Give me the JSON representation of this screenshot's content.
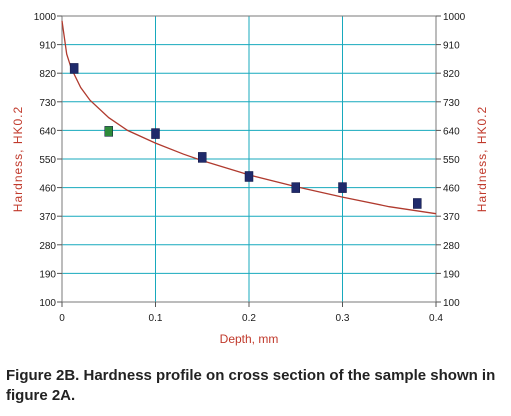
{
  "caption": "Figure 2B. Hardness profile on cross section of the sample shown in figure 2A.",
  "chart_data": {
    "type": "scatter",
    "xlabel": "Depth, mm",
    "ylabel_left": "Hardness, HK0.2",
    "ylabel_right": "Hardness, HK0.2",
    "xlim": [
      0,
      0.4
    ],
    "ylim": [
      100,
      1000
    ],
    "x_ticks": [
      "0",
      "0.1",
      "0.2",
      "0.3",
      "0.4"
    ],
    "x_tick_values": [
      0,
      0.1,
      0.2,
      0.3,
      0.4
    ],
    "y_ticks": [
      "100",
      "190",
      "280",
      "370",
      "460",
      "550",
      "640",
      "730",
      "820",
      "910",
      "1000"
    ],
    "y_tick_values": [
      100,
      190,
      280,
      370,
      460,
      550,
      640,
      730,
      820,
      910,
      1000
    ],
    "grid": true,
    "series": [
      {
        "color": "#1f2a6b",
        "marker": "square",
        "points": [
          {
            "x": 0.013,
            "y": 835
          },
          {
            "x": 0.1,
            "y": 630
          },
          {
            "x": 0.15,
            "y": 555
          },
          {
            "x": 0.2,
            "y": 495
          },
          {
            "x": 0.25,
            "y": 460
          },
          {
            "x": 0.3,
            "y": 460
          },
          {
            "x": 0.38,
            "y": 410
          }
        ]
      },
      {
        "color": "#2e8b3a",
        "marker": "square",
        "points": [
          {
            "x": 0.05,
            "y": 637
          }
        ]
      }
    ],
    "trend_line": {
      "color": "#b03a2e",
      "points": [
        {
          "x": 0.0,
          "y": 985
        },
        {
          "x": 0.005,
          "y": 880
        },
        {
          "x": 0.01,
          "y": 835
        },
        {
          "x": 0.02,
          "y": 775
        },
        {
          "x": 0.03,
          "y": 735
        },
        {
          "x": 0.05,
          "y": 680
        },
        {
          "x": 0.07,
          "y": 640
        },
        {
          "x": 0.1,
          "y": 600
        },
        {
          "x": 0.13,
          "y": 565
        },
        {
          "x": 0.15,
          "y": 545
        },
        {
          "x": 0.2,
          "y": 500
        },
        {
          "x": 0.25,
          "y": 463
        },
        {
          "x": 0.3,
          "y": 430
        },
        {
          "x": 0.35,
          "y": 400
        },
        {
          "x": 0.4,
          "y": 378
        }
      ]
    }
  }
}
